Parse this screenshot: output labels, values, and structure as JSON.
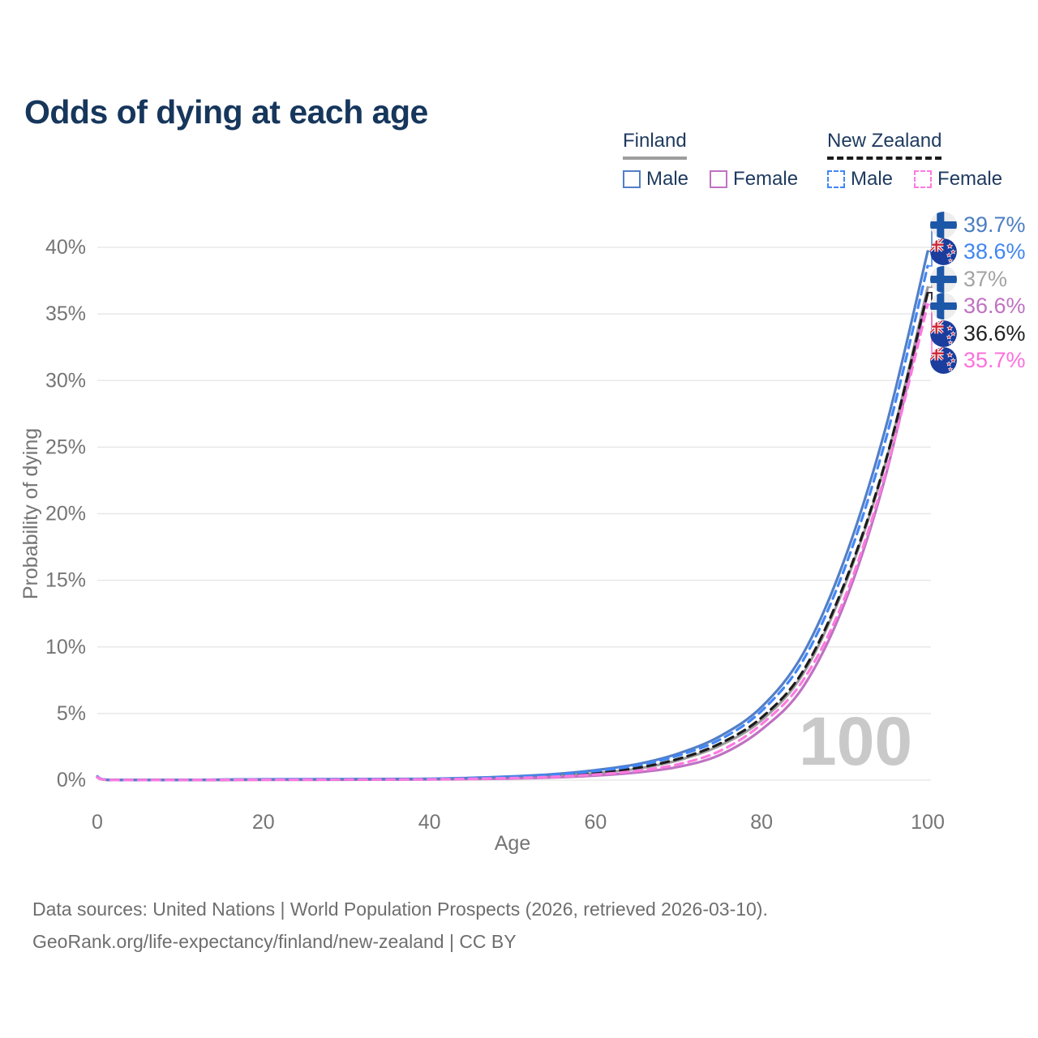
{
  "page": {
    "title": "Odds of dying at each age",
    "background": "#ffffff",
    "accent_text_color": "#1e3a5f",
    "axis_text_color": "#757575",
    "grid_color": "#e8e8e8",
    "watermark_color": "#c9c9c9"
  },
  "legend": {
    "groups": [
      {
        "name": "Finland",
        "underline_style": "solid",
        "underline_color": "#9e9e9e",
        "items": [
          {
            "label": "Male",
            "swatch_color": "#527fc7",
            "swatch_style": "solid"
          },
          {
            "label": "Female",
            "swatch_color": "#bf72c2",
            "swatch_style": "solid"
          }
        ]
      },
      {
        "name": "New Zealand",
        "underline_style": "dashed",
        "underline_color": "#1c1c1c",
        "items": [
          {
            "label": "Male",
            "swatch_color": "#4287f5",
            "swatch_style": "dashed"
          },
          {
            "label": "Female",
            "swatch_color": "#fd7ae0",
            "swatch_style": "dashed"
          }
        ]
      }
    ]
  },
  "chart_data": {
    "type": "line",
    "title": "Odds of dying at each age",
    "xlabel": "Age",
    "ylabel": "Probability of dying",
    "xlim": [
      0,
      100
    ],
    "ylim_pct": [
      0,
      40
    ],
    "grid": "horizontal",
    "legend_position": "top-right",
    "x_ticks": [
      0,
      20,
      40,
      60,
      80,
      100
    ],
    "x_tick_labels": [
      "0",
      "20",
      "40",
      "60",
      "80",
      "100"
    ],
    "y_ticks_pct": [
      0,
      5,
      10,
      15,
      20,
      25,
      30,
      35,
      40
    ],
    "y_tick_labels": [
      "0%",
      "5%",
      "10%",
      "15%",
      "20%",
      "25%",
      "30%",
      "35%",
      "40%"
    ],
    "age_watermark": "100",
    "x": [
      0,
      1,
      5,
      10,
      20,
      30,
      40,
      45,
      50,
      55,
      60,
      65,
      70,
      75,
      80,
      85,
      90,
      95,
      100
    ],
    "series": [
      {
        "name": "Finland Total",
        "country": "finland",
        "sex": "total",
        "color": "#9b9b9b",
        "dash": "solid",
        "label_color": "#a3a3a3",
        "end_label": "37%",
        "values": [
          0.22,
          0.03,
          0.01,
          0.01,
          0.04,
          0.05,
          0.08,
          0.12,
          0.19,
          0.31,
          0.52,
          0.86,
          1.5,
          2.6,
          4.5,
          8.0,
          14.6,
          24.0,
          37.0
        ]
      },
      {
        "name": "Finland Female",
        "country": "finland",
        "sex": "female",
        "color": "#bf72c2",
        "dash": "solid",
        "label_color": "#bf72c2",
        "end_label": "36.6%",
        "values": [
          0.2,
          0.03,
          0.01,
          0.01,
          0.02,
          0.03,
          0.05,
          0.08,
          0.12,
          0.2,
          0.34,
          0.58,
          1.0,
          1.9,
          3.8,
          7.0,
          13.3,
          23.0,
          36.6
        ]
      },
      {
        "name": "Finland Male",
        "country": "finland",
        "sex": "male",
        "color": "#527fc7",
        "dash": "solid",
        "label_color": "#4c7ec2",
        "end_label": "39.7%",
        "values": [
          0.25,
          0.03,
          0.01,
          0.01,
          0.06,
          0.08,
          0.1,
          0.17,
          0.28,
          0.45,
          0.75,
          1.2,
          2.0,
          3.3,
          5.5,
          9.5,
          16.6,
          26.6,
          39.7
        ]
      },
      {
        "name": "New Zealand Total",
        "country": "new-zealand",
        "sex": "total",
        "color": "#1c1c1c",
        "dash": "dashed",
        "label_color": "#212121",
        "end_label": "36.6%",
        "values": [
          0.25,
          0.03,
          0.01,
          0.01,
          0.04,
          0.05,
          0.08,
          0.13,
          0.2,
          0.33,
          0.56,
          0.92,
          1.6,
          2.75,
          4.7,
          8.2,
          14.8,
          24.1,
          36.6
        ]
      },
      {
        "name": "New Zealand Male",
        "country": "new-zealand",
        "sex": "male",
        "color": "#4287f5",
        "dash": "dashed",
        "label_color": "#4186f0",
        "end_label": "38.6%",
        "values": [
          0.28,
          0.03,
          0.01,
          0.01,
          0.06,
          0.07,
          0.09,
          0.16,
          0.26,
          0.41,
          0.68,
          1.1,
          1.85,
          3.05,
          5.2,
          9.0,
          15.9,
          25.7,
          38.6
        ]
      },
      {
        "name": "New Zealand Female",
        "country": "new-zealand",
        "sex": "female",
        "color": "#fd7ae0",
        "dash": "dashed",
        "label_color": "#fd70dd",
        "end_label": "35.7%",
        "values": [
          0.22,
          0.03,
          0.01,
          0.01,
          0.03,
          0.04,
          0.06,
          0.1,
          0.15,
          0.25,
          0.42,
          0.7,
          1.2,
          2.2,
          4.2,
          7.5,
          13.7,
          23.2,
          35.7
        ]
      }
    ]
  },
  "footer": {
    "line1": "Data sources: United Nations | World Population Prospects (2026, retrieved 2026-03-10).",
    "line2": "GeoRank.org/life-expectancy/finland/new-zealand | CC BY"
  }
}
